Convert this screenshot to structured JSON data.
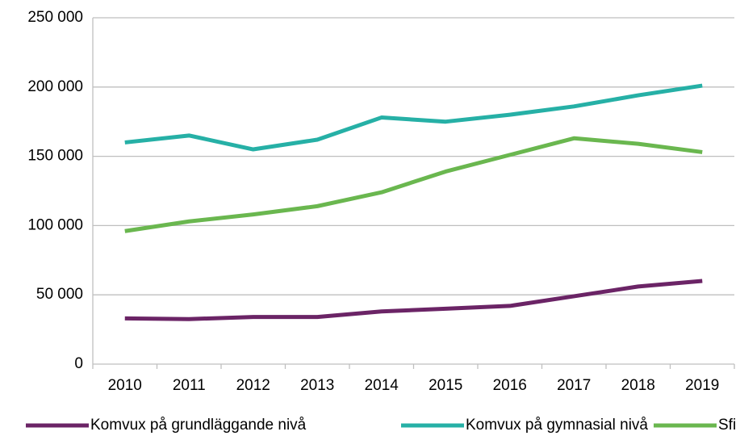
{
  "chart_data": {
    "type": "line",
    "categories": [
      "2010",
      "2011",
      "2012",
      "2013",
      "2014",
      "2015",
      "2016",
      "2017",
      "2018",
      "2019"
    ],
    "series": [
      {
        "name": "Komvux på grundläggande nivå",
        "color": "#6b2466",
        "values": [
          33000,
          32500,
          34000,
          34000,
          38000,
          40000,
          42000,
          49000,
          56000,
          60000
        ]
      },
      {
        "name": "Komvux på gymnasial nivå",
        "color": "#26b0a6",
        "values": [
          160000,
          165000,
          155000,
          162000,
          178000,
          175000,
          180000,
          186000,
          194000,
          201000
        ]
      },
      {
        "name": "Sfi",
        "color": "#6ab74f",
        "values": [
          96000,
          103000,
          108000,
          114000,
          124000,
          139000,
          151000,
          163000,
          159000,
          153000
        ]
      }
    ],
    "ylim": [
      0,
      250000
    ],
    "yticks": [
      0,
      {
        "value": 50000,
        "label": "50 000"
      },
      {
        "value": 100000,
        "label": "100 000"
      },
      {
        "value": 150000,
        "label": "150 000"
      },
      {
        "value": 200000,
        "label": "200 000"
      },
      {
        "value": 250000,
        "label": "250 000"
      }
    ],
    "grid": true,
    "legend": "bottom"
  }
}
